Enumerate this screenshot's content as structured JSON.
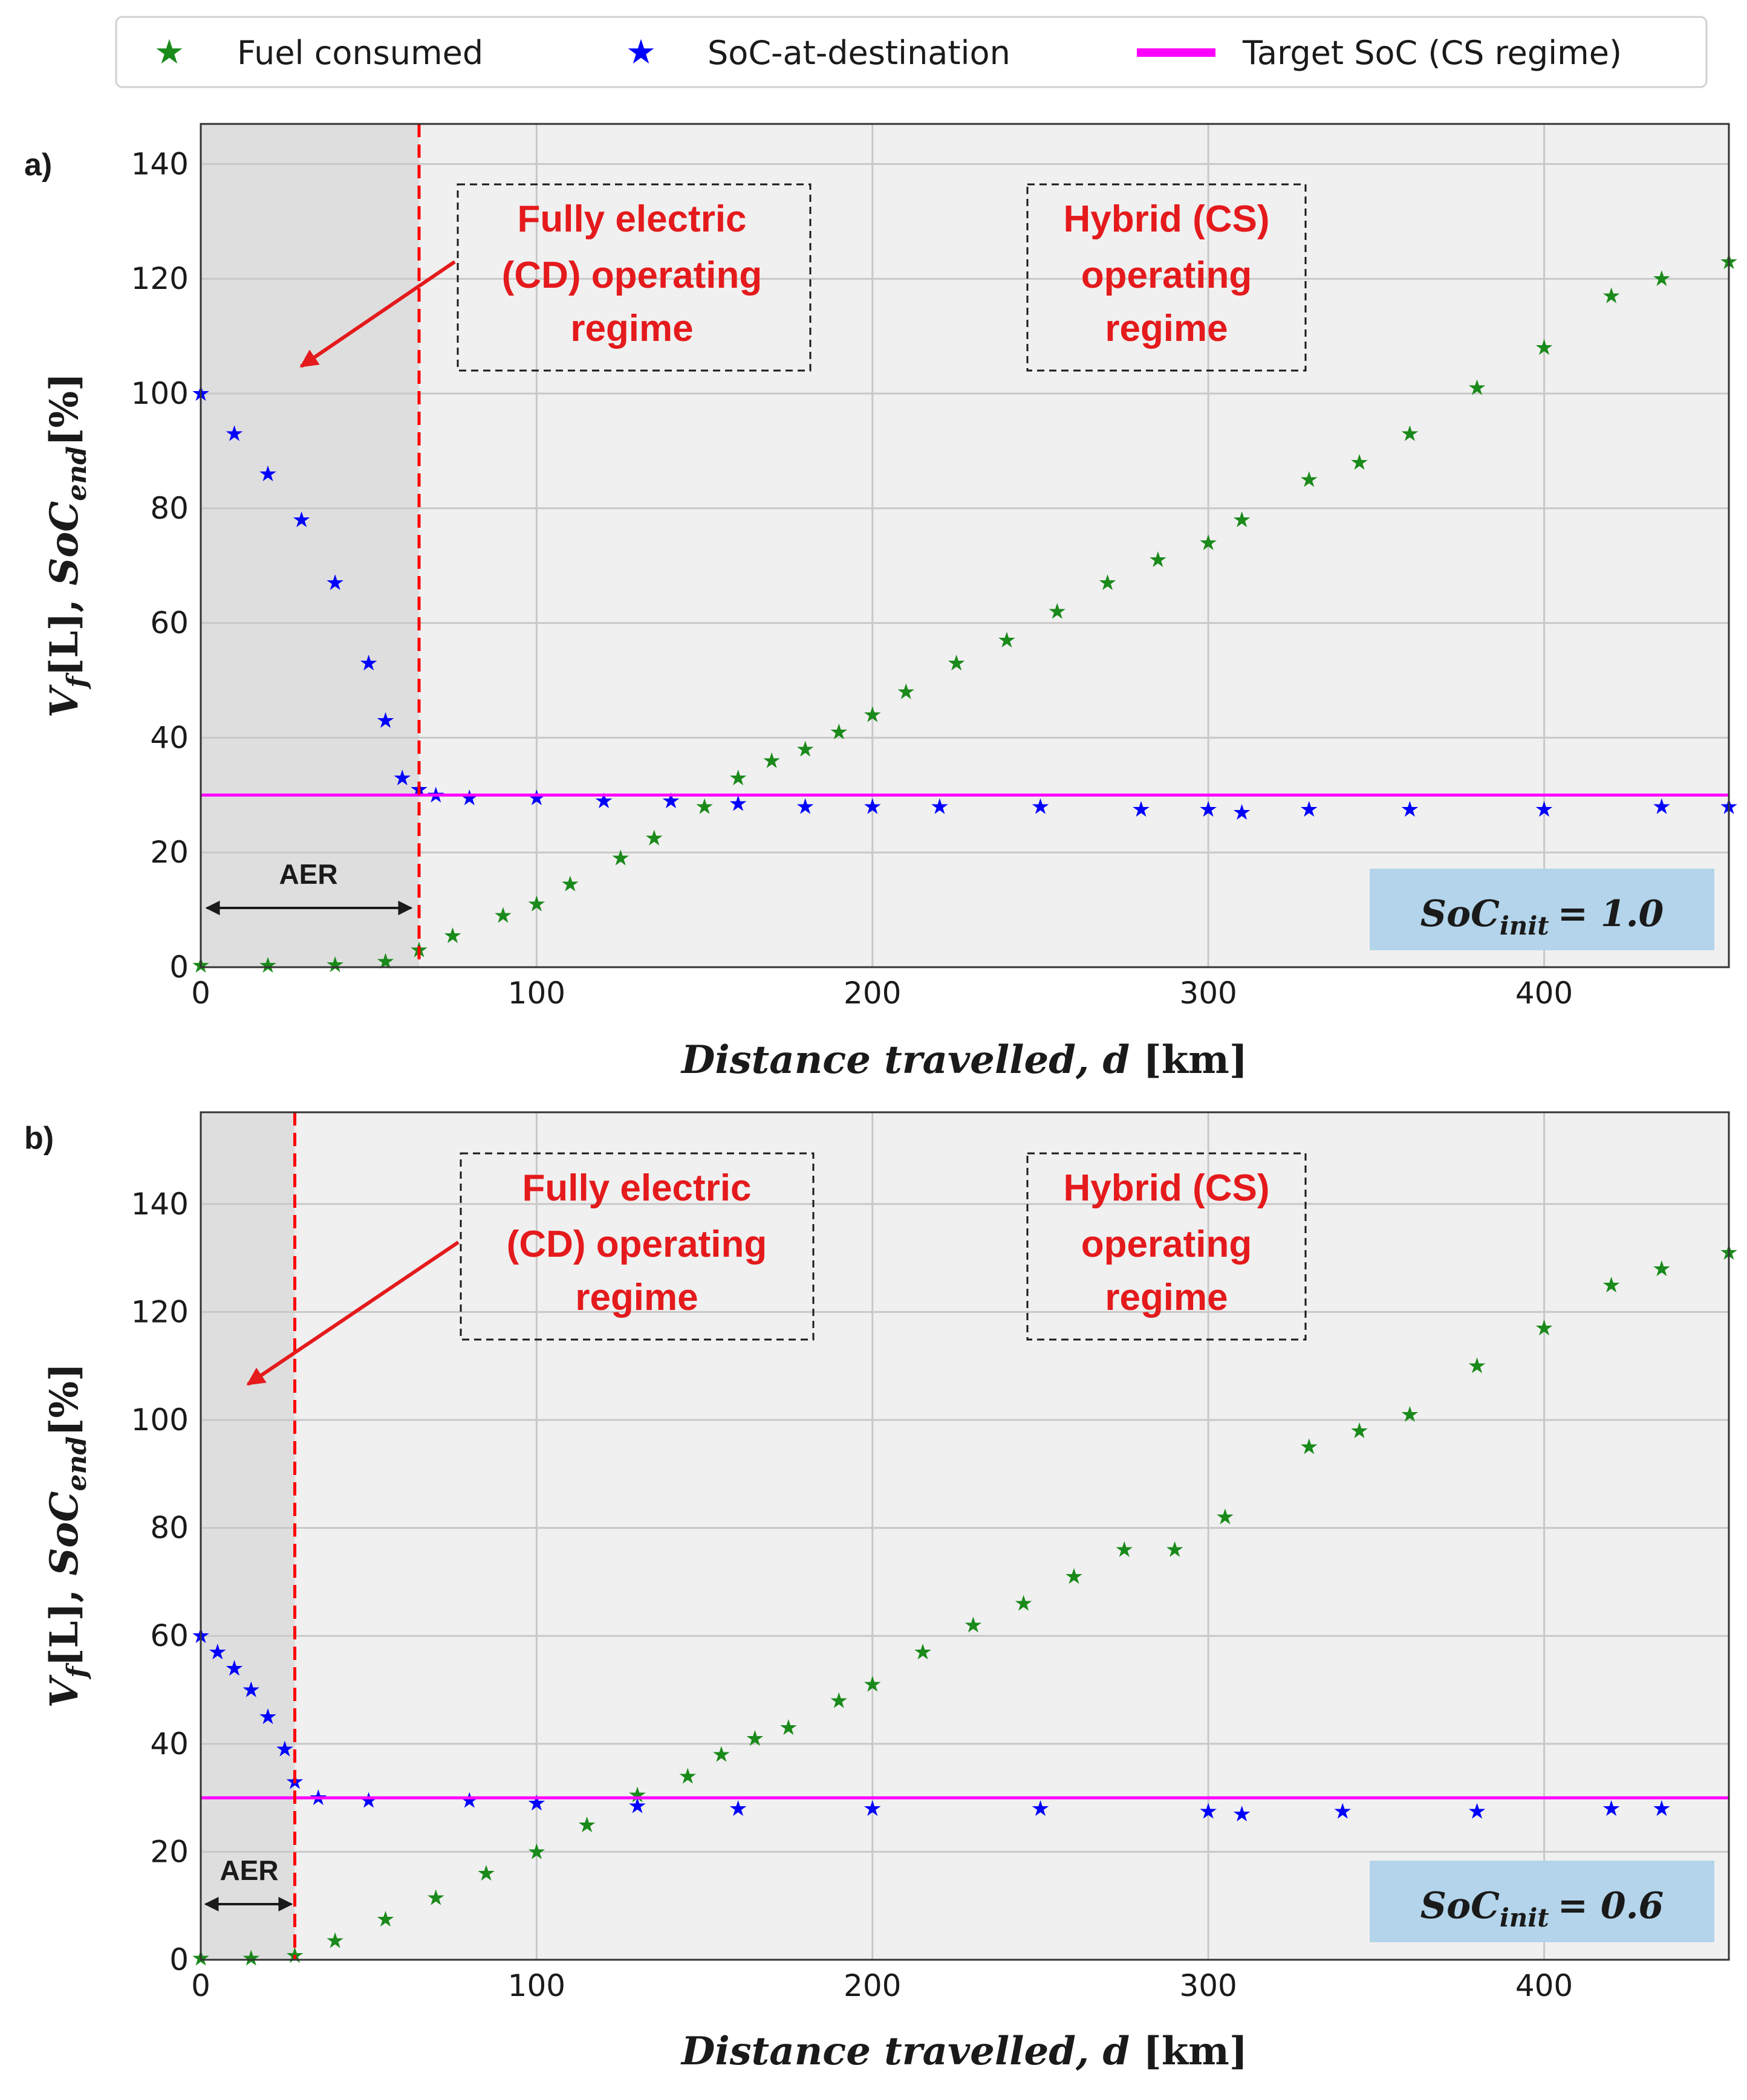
{
  "legend": {
    "items": [
      {
        "label": "Fuel consumed",
        "marker": "star",
        "color": "#1a8a1a"
      },
      {
        "label": "SoC-at-destination",
        "marker": "star",
        "color": "#0000ff"
      },
      {
        "label": "Target SoC (CS regime)",
        "marker": "line",
        "color": "#ff00ff"
      }
    ]
  },
  "colors": {
    "fuel": "#1a8a1a",
    "soc": "#0000ff",
    "target": "#ff00ff",
    "aer_line": "#ff0000",
    "annotation": "#e41a1c",
    "plot_bg": "#f0f0f0",
    "shade": "#dedede",
    "soc_box": "#b3d4ea"
  },
  "annotations": {
    "aer_label": "AER",
    "cd_regime": [
      "Fully electric",
      "(CD) operating",
      "regime"
    ],
    "cs_regime": [
      "Hybrid (CS)",
      "operating",
      "regime"
    ]
  },
  "axis_titles": {
    "x_main": "Distance travelled,",
    "x_var": "d",
    "x_unit": "[km]",
    "y_v": "V",
    "y_f": "f",
    "y_L": "[L], ",
    "y_soc": "SoC",
    "y_end": "end",
    "y_pct": "[%]"
  },
  "chart_data": [
    {
      "panel": "a)",
      "type": "scatter",
      "xlabel": "Distance travelled, d [km]",
      "ylabel": "V_f[L], SoC_end[%]",
      "xlim": [
        0,
        455
      ],
      "ylim": [
        0,
        147
      ],
      "xticks": [
        0,
        100,
        200,
        300,
        400
      ],
      "yticks": [
        0,
        20,
        40,
        60,
        80,
        100,
        120,
        140
      ],
      "grid": true,
      "legend_position": "top",
      "soc_init_label": "SoC",
      "soc_init_sub": "init",
      "soc_init_value": "= 1.0",
      "soc_init": 1.0,
      "aer_km": 65,
      "target_soc": 30,
      "series": [
        {
          "name": "Fuel consumed",
          "marker": "star",
          "color": "#1a8a1a",
          "x": [
            0,
            20,
            40,
            55,
            65,
            75,
            90,
            100,
            110,
            125,
            135,
            150,
            160,
            170,
            180,
            190,
            200,
            210,
            225,
            240,
            255,
            270,
            285,
            300,
            310,
            330,
            345,
            360,
            380,
            400,
            420,
            435,
            455
          ],
          "y": [
            0.3,
            0.3,
            0.4,
            1.0,
            3.0,
            5.5,
            9.0,
            11.0,
            14.5,
            19.0,
            22.5,
            28.0,
            33.0,
            36.0,
            38.0,
            41.0,
            44.0,
            48.0,
            53.0,
            57.0,
            62.0,
            67.0,
            71.0,
            74.0,
            78.0,
            85.0,
            88.0,
            93.0,
            101.0,
            108.0,
            117.0,
            120.0,
            123.0
          ]
        },
        {
          "name": "SoC-at-destination",
          "marker": "star",
          "color": "#0000ff",
          "x": [
            0,
            10,
            20,
            30,
            40,
            50,
            55,
            60,
            65,
            70,
            80,
            100,
            120,
            140,
            160,
            180,
            200,
            220,
            250,
            280,
            300,
            310,
            330,
            360,
            400,
            435,
            455
          ],
          "y": [
            100.0,
            93.0,
            86.0,
            78.0,
            67.0,
            53.0,
            43.0,
            33.0,
            31.0,
            30.0,
            29.5,
            29.5,
            29.0,
            29.0,
            28.5,
            28.0,
            28.0,
            28.0,
            28.0,
            27.5,
            27.5,
            27.0,
            27.5,
            27.5,
            27.5,
            28.0,
            28.0
          ]
        },
        {
          "name": "Target SoC (CS regime)",
          "type": "hline",
          "color": "#ff00ff",
          "y": 30
        }
      ]
    },
    {
      "panel": "b)",
      "type": "scatter",
      "xlabel": "Distance travelled, d [km]",
      "ylabel": "V_f[L], SoC_end[%]",
      "xlim": [
        0,
        455
      ],
      "ylim": [
        0,
        157
      ],
      "xticks": [
        0,
        100,
        200,
        300,
        400
      ],
      "yticks": [
        0,
        20,
        40,
        60,
        80,
        100,
        120,
        140
      ],
      "grid": true,
      "legend_position": "top",
      "soc_init_label": "SoC",
      "soc_init_sub": "init",
      "soc_init_value": "= 0.6",
      "soc_init": 0.6,
      "aer_km": 28,
      "target_soc": 30,
      "series": [
        {
          "name": "Fuel consumed",
          "marker": "star",
          "color": "#1a8a1a",
          "x": [
            0,
            15,
            28,
            40,
            55,
            70,
            85,
            100,
            115,
            130,
            145,
            155,
            165,
            175,
            190,
            200,
            215,
            230,
            245,
            260,
            275,
            290,
            305,
            330,
            345,
            360,
            380,
            400,
            420,
            435,
            455
          ],
          "y": [
            0.3,
            0.3,
            0.8,
            3.5,
            7.5,
            11.5,
            16.0,
            20.0,
            25.0,
            30.5,
            34.0,
            38.0,
            41.0,
            43.0,
            48.0,
            51.0,
            57.0,
            62.0,
            66.0,
            71.0,
            76.0,
            76.0,
            82.0,
            95.0,
            98.0,
            101.0,
            110.0,
            117.0,
            125.0,
            128.0,
            131.0
          ]
        },
        {
          "name": "SoC-at-destination",
          "marker": "star",
          "color": "#0000ff",
          "x": [
            0,
            5,
            10,
            15,
            20,
            25,
            28,
            35,
            50,
            80,
            100,
            130,
            160,
            200,
            250,
            300,
            310,
            340,
            380,
            420,
            435
          ],
          "y": [
            60.0,
            57.0,
            54.0,
            50.0,
            45.0,
            39.0,
            33.0,
            30.0,
            29.5,
            29.5,
            29.0,
            28.5,
            28.0,
            28.0,
            28.0,
            27.5,
            27.0,
            27.5,
            27.5,
            28.0,
            28.0
          ]
        },
        {
          "name": "Target SoC (CS regime)",
          "type": "hline",
          "color": "#ff00ff",
          "y": 30
        }
      ]
    }
  ]
}
